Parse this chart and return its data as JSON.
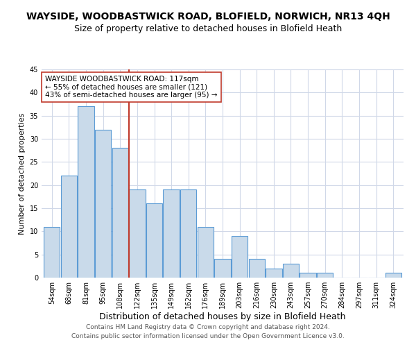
{
  "title": "WAYSIDE, WOODBASTWICK ROAD, BLOFIELD, NORWICH, NR13 4QH",
  "subtitle": "Size of property relative to detached houses in Blofield Heath",
  "xlabel": "Distribution of detached houses by size in Blofield Heath",
  "ylabel": "Number of detached properties",
  "categories": [
    "54sqm",
    "68sqm",
    "81sqm",
    "95sqm",
    "108sqm",
    "122sqm",
    "135sqm",
    "149sqm",
    "162sqm",
    "176sqm",
    "189sqm",
    "203sqm",
    "216sqm",
    "230sqm",
    "243sqm",
    "257sqm",
    "270sqm",
    "284sqm",
    "297sqm",
    "311sqm",
    "324sqm"
  ],
  "values": [
    11,
    22,
    37,
    32,
    28,
    19,
    16,
    19,
    19,
    11,
    4,
    9,
    4,
    2,
    3,
    1,
    1,
    0,
    0,
    0,
    1
  ],
  "bar_color": "#c9daea",
  "bar_edge_color": "#5b9bd5",
  "background_color": "#ffffff",
  "grid_color": "#d0d8e8",
  "vline_x": 4.5,
  "vline_color": "#c0392b",
  "annotation_text": "WAYSIDE WOODBASTWICK ROAD: 117sqm\n← 55% of detached houses are smaller (121)\n43% of semi-detached houses are larger (95) →",
  "annotation_box_color": "#ffffff",
  "annotation_box_edge": "#c0392b",
  "footer1": "Contains HM Land Registry data © Crown copyright and database right 2024.",
  "footer2": "Contains public sector information licensed under the Open Government Licence v3.0.",
  "ylim": [
    0,
    45
  ],
  "yticks": [
    0,
    5,
    10,
    15,
    20,
    25,
    30,
    35,
    40,
    45
  ],
  "title_fontsize": 10,
  "subtitle_fontsize": 9,
  "xlabel_fontsize": 9,
  "ylabel_fontsize": 8,
  "tick_fontsize": 7,
  "annotation_fontsize": 7.5,
  "footer_fontsize": 6.5
}
